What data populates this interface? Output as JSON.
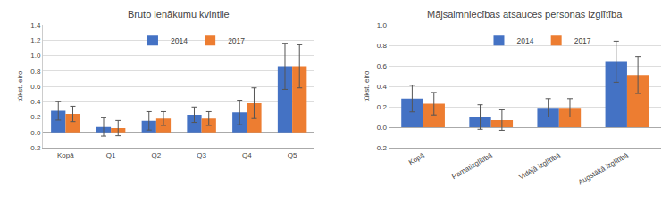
{
  "chart_data": [
    {
      "type": "bar",
      "title": "Bruto ienākumu kvintile",
      "ylabel": "tūkst. eiro",
      "categories": [
        "Kopā",
        "Q1",
        "Q2",
        "Q3",
        "Q4",
        "Q5"
      ],
      "series": [
        {
          "name": "2014",
          "color": "#4472C4",
          "values": [
            0.28,
            0.07,
            0.15,
            0.23,
            0.26,
            0.86
          ],
          "errors": [
            0.12,
            0.12,
            0.12,
            0.1,
            0.16,
            0.3
          ]
        },
        {
          "name": "2017",
          "color": "#ED7D31",
          "values": [
            0.24,
            0.055,
            0.18,
            0.18,
            0.38,
            0.86
          ],
          "errors": [
            0.1,
            0.1,
            0.09,
            0.09,
            0.2,
            0.28
          ]
        }
      ],
      "ylim": [
        -0.2,
        1.4
      ],
      "yticks": [
        -0.2,
        {
          "value": 0,
          "label": "0.0"
        },
        0.2,
        0.4,
        0.6,
        0.8,
        {
          "value": 1,
          "label": "1.0"
        },
        1.2,
        1.4
      ],
      "grid": true,
      "legend": "top"
    },
    {
      "type": "bar",
      "title": "Mājsaimniecības atsauces personas izglītība",
      "ylabel": "tūkst. eiro",
      "categories": [
        "Kopā",
        "Pamatizglītībā",
        "Vidējā izglītībā",
        "Augstākā izglītībā"
      ],
      "series": [
        {
          "name": "2014",
          "color": "#4472C4",
          "values": [
            0.28,
            0.1,
            0.19,
            0.64
          ],
          "errors": [
            0.13,
            0.12,
            0.09,
            0.2
          ]
        },
        {
          "name": "2017",
          "color": "#ED7D31",
          "values": [
            0.23,
            0.07,
            0.19,
            0.51
          ],
          "errors": [
            0.11,
            0.1,
            0.09,
            0.18
          ]
        }
      ],
      "ylim": [
        -0.2,
        1.0
      ],
      "yticks": [
        -0.2,
        {
          "value": 0,
          "label": "0.0"
        },
        0.2,
        0.4,
        0.6,
        0.8,
        {
          "value": 1,
          "label": "1.0"
        }
      ],
      "grid": true,
      "legend": "top"
    }
  ]
}
